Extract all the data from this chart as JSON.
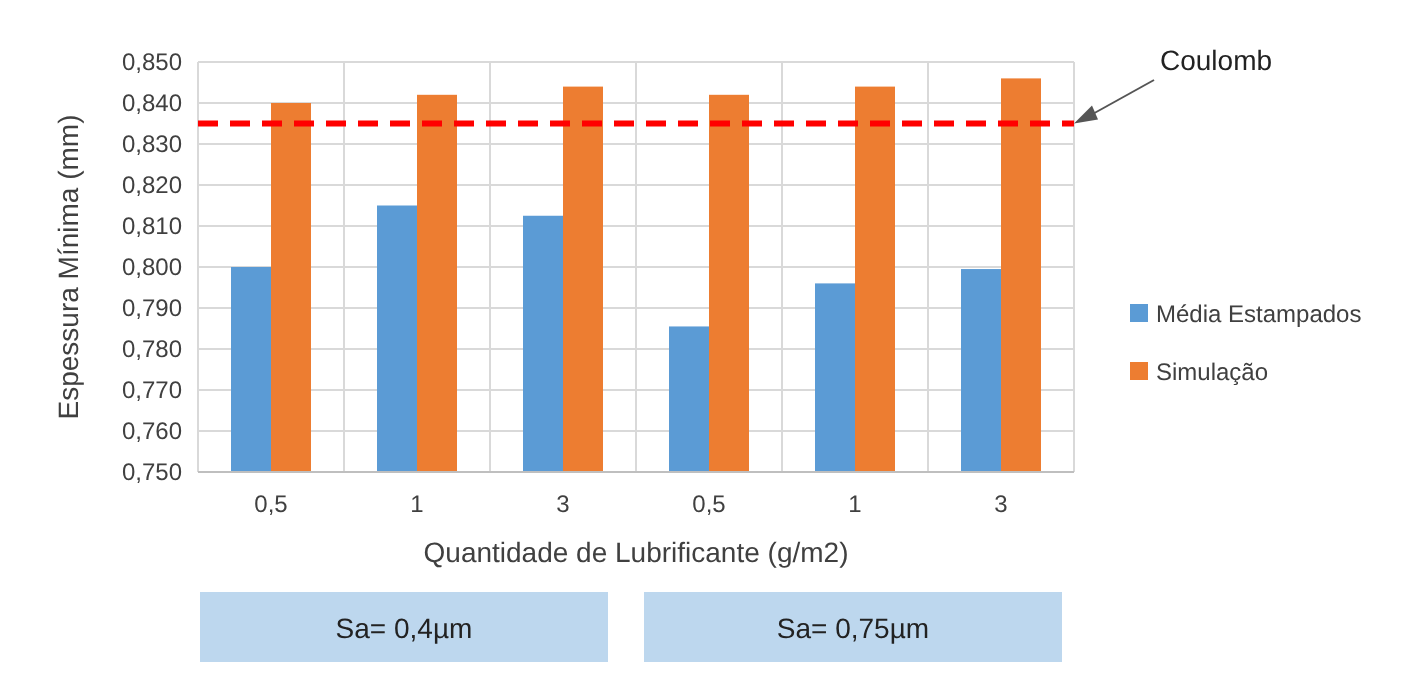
{
  "chart_data": {
    "type": "bar",
    "xlabel": "Quantidade de Lubrificante (g/m2)",
    "ylabel": "Espessura Mínima (mm)",
    "categories": [
      "0,5",
      "1",
      "3",
      "0,5",
      "1",
      "3"
    ],
    "series": [
      {
        "name": "Média Estampados",
        "color": "#5b9bd5",
        "values": [
          0.8,
          0.815,
          0.8125,
          0.7855,
          0.796,
          0.7995
        ]
      },
      {
        "name": "Simulação",
        "color": "#ed7d31",
        "values": [
          0.84,
          0.842,
          0.844,
          0.842,
          0.844,
          0.846
        ]
      }
    ],
    "ylim": [
      0.75,
      0.85
    ],
    "yticks": [
      {
        "value": 0.75,
        "label": "0,750"
      },
      {
        "value": 0.76,
        "label": "0,760"
      },
      {
        "value": 0.77,
        "label": "0,770"
      },
      {
        "value": 0.78,
        "label": "0,780"
      },
      {
        "value": 0.79,
        "label": "0,790"
      },
      {
        "value": 0.8,
        "label": "0,800"
      },
      {
        "value": 0.81,
        "label": "0,810"
      },
      {
        "value": 0.82,
        "label": "0,820"
      },
      {
        "value": 0.83,
        "label": "0,830"
      },
      {
        "value": 0.84,
        "label": "0,840"
      },
      {
        "value": 0.85,
        "label": "0,850"
      }
    ],
    "ref_lines": [
      {
        "axis": "y",
        "value": 0.835,
        "label": "Coulomb",
        "color": "#ff0000",
        "line_style": "dashed"
      }
    ],
    "annotations": [
      "Sa= 0,4µm",
      "Sa= 0,75µm"
    ],
    "grid": true,
    "legend": "right"
  }
}
